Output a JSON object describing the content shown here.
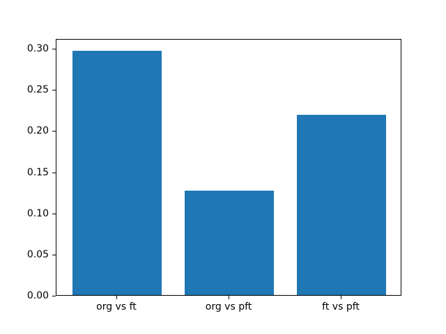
{
  "chart_data": {
    "type": "bar",
    "categories": [
      "org vs ft",
      "org vs pft",
      "ft vs pft"
    ],
    "values": [
      0.297,
      0.127,
      0.219
    ],
    "title": "",
    "xlabel": "",
    "ylabel": "",
    "ylim": [
      0,
      0.312
    ],
    "yticks": [
      0.0,
      0.05,
      0.1,
      0.15,
      0.2,
      0.25,
      0.3
    ],
    "ytick_labels": [
      "0.00",
      "0.05",
      "0.10",
      "0.15",
      "0.20",
      "0.25",
      "0.30"
    ],
    "bar_color": "#1f77b4",
    "bar_width_fraction": 0.8,
    "grid": false,
    "legend_position": "none",
    "spine_color": "#000000",
    "background_color": "#ffffff"
  }
}
